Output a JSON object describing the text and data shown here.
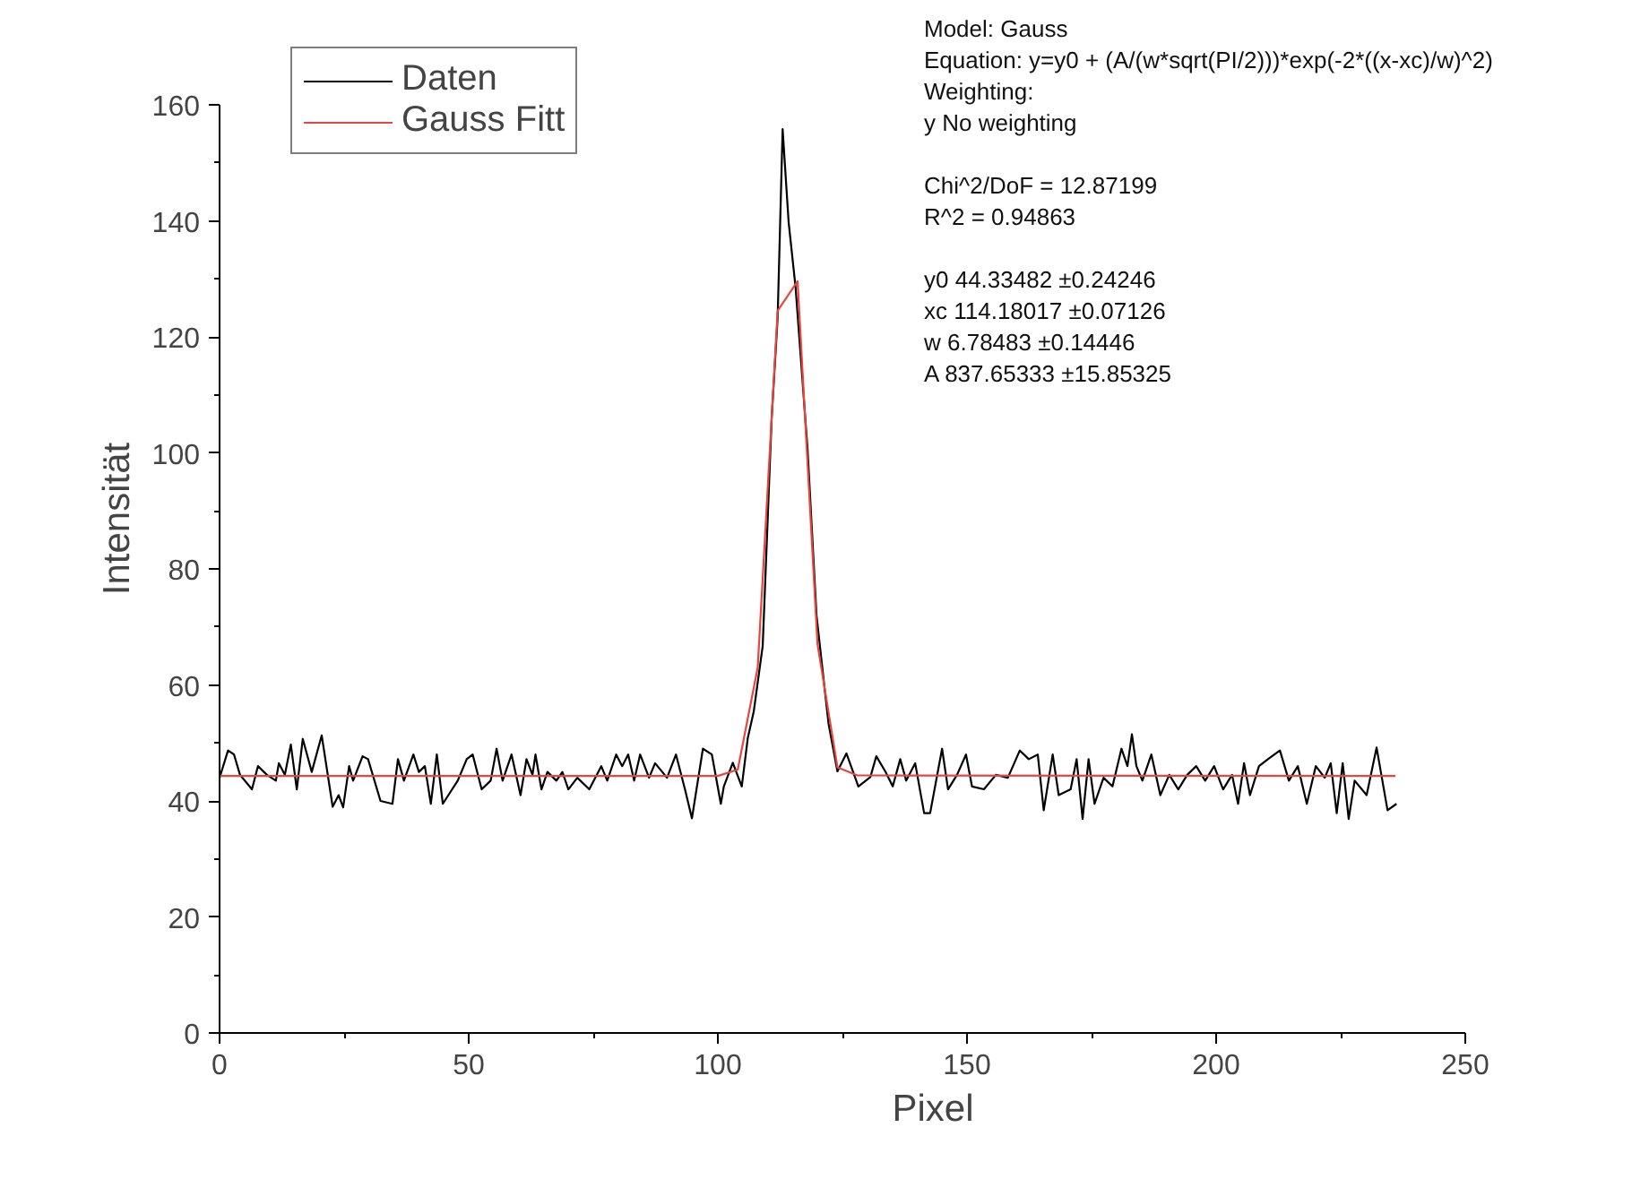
{
  "chart_data": {
    "type": "line",
    "xlabel": "Pixel",
    "ylabel": "Intensität",
    "xlim": [
      0,
      250
    ],
    "ylim": [
      0,
      160
    ],
    "xticks": [
      0,
      50,
      100,
      150,
      200,
      250
    ],
    "yticks": [
      0,
      20,
      40,
      60,
      80,
      100,
      120,
      140,
      160
    ],
    "grid": false,
    "legend": "top left",
    "marker": "none",
    "line_style": "solid",
    "annotations": [
      "Model: Gauss",
      "Equation: y=y0 + (A/(w*sqrt(PI/2)))*exp(-2*((x-xc)/w)^2)",
      "Weighting:",
      "y        No weighting",
      "Chi^2/DoF       = 12.87199",
      "R^2     =  0.94863",
      "y0        44.33482        ±0.24246",
      "xc        114.18017      ±0.07126",
      "w         6.78483          ±0.14446",
      "A         837.65333      ±15.85325"
    ],
    "series": [
      {
        "name": "Daten",
        "color": "#000000",
        "x": [
          0,
          1.7,
          2.9,
          4.1,
          6.5,
          7.7,
          9.5,
          11.3,
          11.9,
          13.1,
          14.3,
          15.5,
          16.7,
          18.5,
          20.5,
          22.7,
          23.9,
          24.8,
          26.0,
          26.8,
          28.7,
          29.8,
          32.3,
          34.7,
          35.8,
          37.0,
          38.9,
          40.0,
          41.2,
          42.4,
          43.6,
          44.8,
          47.8,
          49.6,
          50.8,
          52.6,
          54.4,
          55.6,
          56.8,
          58.6,
          60.4,
          61.6,
          62.8,
          63.4,
          64.6,
          65.8,
          67.6,
          68.8,
          70.0,
          71.8,
          74.2,
          76.6,
          77.8,
          79.6,
          80.8,
          82.0,
          83.2,
          84.4,
          86.2,
          87.4,
          89.8,
          91.6,
          93.4,
          94.8,
          97.0,
          98.8,
          100.6,
          101.2,
          103.0,
          104.8,
          106.0,
          107.2,
          109.0,
          110.8,
          112.0,
          113.0,
          114.2,
          115.6,
          118.0,
          119.8,
          122.2,
          124.0,
          125.8,
          128.2,
          130.6,
          131.8,
          133.6,
          135.1,
          136.6,
          137.8,
          139.6,
          141.4,
          142.6,
          145.0,
          146.2,
          148.0,
          149.8,
          151.0,
          153.4,
          155.8,
          158.2,
          160.6,
          162.4,
          164.2,
          165.4,
          167.2,
          168.4,
          170.8,
          172.0,
          173.2,
          174.4,
          175.6,
          177.4,
          179.2,
          181.0,
          182.2,
          183.1,
          184.0,
          185.2,
          187.0,
          188.8,
          190.6,
          192.4,
          194.2,
          196.0,
          197.8,
          199.6,
          201.4,
          203.2,
          204.4,
          205.6,
          206.8,
          208.6,
          210.4,
          212.8,
          214.6,
          216.4,
          218.2,
          220.0,
          221.8,
          223.0,
          224.2,
          225.4,
          226.6,
          227.8,
          230.2,
          232.2,
          234.4,
          236.2
        ],
        "values": [
          44,
          48.7,
          48,
          44.5,
          42,
          46,
          44.5,
          43.5,
          46.5,
          44.5,
          49.7,
          42,
          50.7,
          45,
          51.3,
          39,
          41,
          38.9,
          46,
          43.5,
          47.7,
          47.2,
          40,
          39.5,
          47.2,
          43.5,
          48,
          45,
          46,
          39.5,
          48,
          39.5,
          43.5,
          47.2,
          48,
          42,
          43.5,
          49,
          43.5,
          48,
          41,
          47.2,
          44.5,
          48,
          42,
          45,
          43.5,
          45,
          42,
          44,
          42,
          46,
          43.5,
          48,
          46,
          48,
          43.5,
          48,
          44,
          46.5,
          44,
          48,
          42,
          37,
          49,
          48,
          39.5,
          42.5,
          46.6,
          42.5,
          50.8,
          55.4,
          66.7,
          106,
          123.3,
          155.8,
          139.8,
          128.5,
          100.7,
          72,
          53.4,
          45.1,
          48.2,
          42.5,
          44.1,
          47.7,
          45.1,
          42.5,
          47.2,
          43.5,
          46.5,
          37.9,
          37.9,
          49,
          42,
          44.5,
          48,
          42.5,
          42,
          44.5,
          44,
          48.7,
          47.2,
          48,
          38.4,
          48,
          41,
          42,
          47.2,
          36.9,
          47.2,
          39.5,
          44,
          42.5,
          49,
          46,
          51.5,
          46,
          43.5,
          48,
          41,
          44.5,
          42,
          44.5,
          46,
          43.5,
          46,
          42,
          44.5,
          39.5,
          46.5,
          41,
          46,
          47.2,
          48.7,
          43.5,
          46,
          39.5,
          46,
          44,
          46.5,
          37.9,
          46.5,
          36.9,
          43.5,
          41,
          49.2,
          38.4,
          39.5
        ]
      },
      {
        "name": "Gauss Fitt",
        "color": "#e8463c",
        "x": [
          0,
          100,
          104,
          108,
          112,
          116,
          120,
          124,
          128,
          236
        ],
        "values": [
          44.3,
          44.3,
          45.4,
          63,
          124.5,
          129.6,
          67,
          45.8,
          44.4,
          44.3
        ]
      }
    ]
  }
}
